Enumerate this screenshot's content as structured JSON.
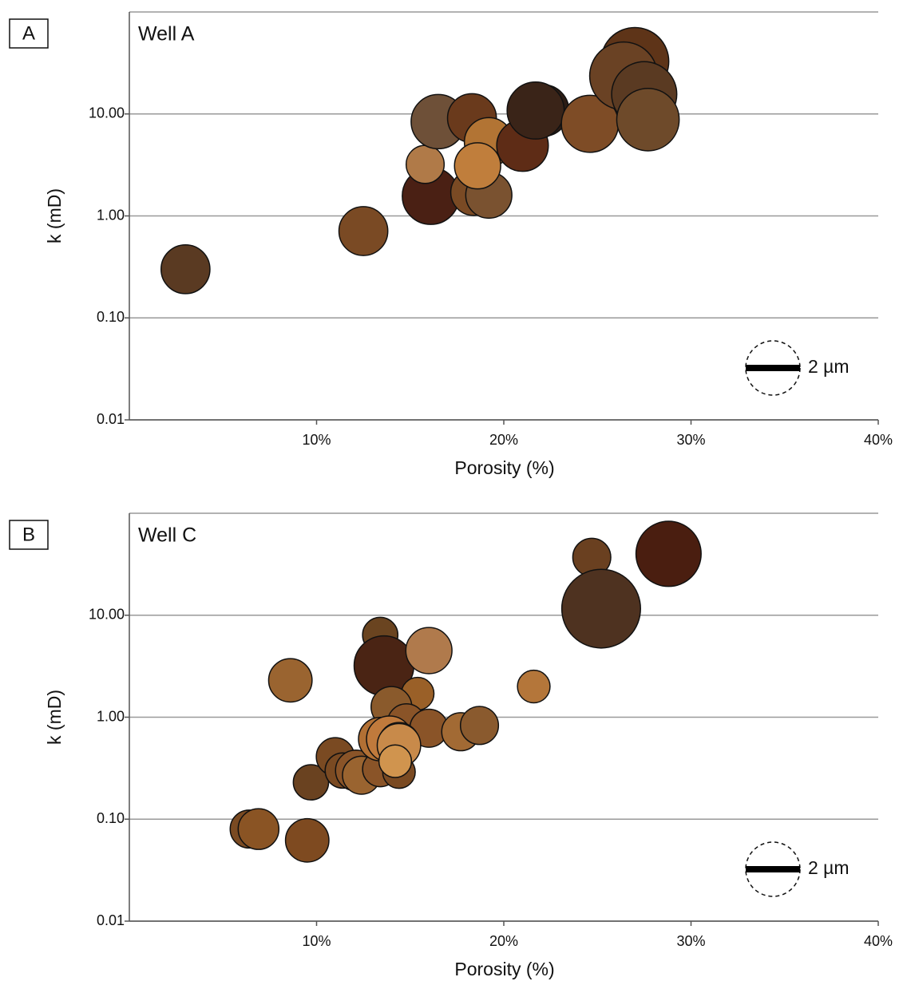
{
  "chart_data": [
    {
      "type": "bubble",
      "panel_label": "A",
      "title": "Well A",
      "x_label": "Porosity (%)",
      "y_label": "k (mD)",
      "x": [
        3.0,
        12.5,
        16.1,
        15.8,
        16.5,
        18.3,
        18.4,
        19.2,
        19.2,
        18.6,
        21.0,
        22.1,
        21.7,
        24.6,
        27.0,
        26.4,
        27.5,
        27.7
      ],
      "y": [
        0.3,
        0.71,
        1.57,
        3.2,
        8.4,
        9.1,
        1.7,
        1.6,
        5.3,
        3.1,
        4.9,
        10.8,
        10.8,
        8.0,
        32.7,
        23.6,
        15.6,
        8.8
      ],
      "sizes": [
        1.8,
        1.8,
        2.1,
        1.4,
        2.0,
        1.8,
        1.7,
        1.7,
        1.8,
        1.7,
        1.9,
        1.9,
        2.1,
        2.1,
        2.5,
        2.5,
        2.4,
        2.3
      ],
      "colors": [
        "#5a3a22",
        "#7a4a24",
        "#4a2014",
        "#b07a48",
        "#6e5038",
        "#6a3a1c",
        "#7a4a24",
        "#7a5230",
        "#b27434",
        "#c07e3c",
        "#5e2c16",
        "#2c1c14",
        "#3a2418",
        "#7e4c26",
        "#5e3418",
        "#6a4224",
        "#5a3a22",
        "#6e4a2a"
      ],
      "xlim": [
        0,
        40
      ],
      "ylim": [
        0.01,
        100
      ],
      "log_y": true,
      "grid": true,
      "xticks": [
        {
          "value": 10,
          "label": "10%"
        },
        {
          "value": 20,
          "label": "20%"
        },
        {
          "value": 30,
          "label": "30%"
        },
        {
          "value": 40,
          "label": "40%"
        }
      ],
      "yticks": [
        {
          "value": 0.01,
          "label": "0.01"
        },
        {
          "value": 0.1,
          "label": "0.10"
        },
        {
          "value": 1,
          "label": "1.00"
        },
        {
          "value": 10,
          "label": "10.00"
        }
      ],
      "size_legend": {
        "value": 2,
        "label": "2 µm"
      }
    },
    {
      "type": "bubble",
      "panel_label": "B",
      "title": "Well C",
      "x_label": "Porosity (%)",
      "y_label": "k (mD)",
      "x": [
        6.4,
        6.9,
        9.5,
        9.7,
        8.6,
        13.4,
        13.6,
        16.0,
        15.4,
        21.6,
        24.7,
        25.2,
        28.8,
        14.0,
        14.8,
        16.0,
        17.7,
        18.7,
        11.0,
        11.4,
        12.1,
        12.4,
        13.4,
        14.4,
        13.4,
        13.9,
        14.4,
        14.4,
        14.2
      ],
      "y": [
        0.08,
        0.08,
        0.062,
        0.23,
        2.3,
        6.4,
        3.2,
        4.5,
        1.7,
        2.0,
        37,
        11.6,
        40,
        1.26,
        0.88,
        0.78,
        0.72,
        0.83,
        0.41,
        0.3,
        0.3,
        0.27,
        0.31,
        0.29,
        0.61,
        0.61,
        0.56,
        0.53,
        0.37
      ],
      "sizes": [
        1.4,
        1.5,
        1.6,
        1.3,
        1.6,
        1.3,
        2.2,
        1.7,
        1.2,
        1.2,
        1.4,
        2.9,
        2.4,
        1.5,
        1.4,
        1.4,
        1.4,
        1.4,
        1.4,
        1.3,
        1.5,
        1.4,
        1.3,
        1.2,
        1.6,
        1.7,
        1.5,
        1.6,
        1.2
      ],
      "colors": [
        "#7a4a22",
        "#8a5424",
        "#7e4a20",
        "#6a4220",
        "#9a6430",
        "#6a4420",
        "#4a2414",
        "#b07a4c",
        "#9a6028",
        "#b4763a",
        "#6a4020",
        "#4e3220",
        "#4a1e10",
        "#8a5a2c",
        "#8a5428",
        "#8a5428",
        "#a26a34",
        "#8a5a2e",
        "#7a4a22",
        "#7a4a22",
        "#8a5428",
        "#9a6430",
        "#8a5428",
        "#7a4a22",
        "#b27034",
        "#c07a3c",
        "#c8843e",
        "#c88a4a",
        "#d0944e"
      ],
      "xlim": [
        0,
        40
      ],
      "ylim": [
        0.01,
        100
      ],
      "log_y": true,
      "grid": true,
      "xticks": [
        {
          "value": 10,
          "label": "10%"
        },
        {
          "value": 20,
          "label": "20%"
        },
        {
          "value": 30,
          "label": "30%"
        },
        {
          "value": 40,
          "label": "40%"
        }
      ],
      "yticks": [
        {
          "value": 0.01,
          "label": "0.01"
        },
        {
          "value": 0.1,
          "label": "0.10"
        },
        {
          "value": 1,
          "label": "1.00"
        },
        {
          "value": 10,
          "label": "10.00"
        }
      ],
      "size_legend": {
        "value": 2,
        "label": "2 µm"
      }
    }
  ]
}
